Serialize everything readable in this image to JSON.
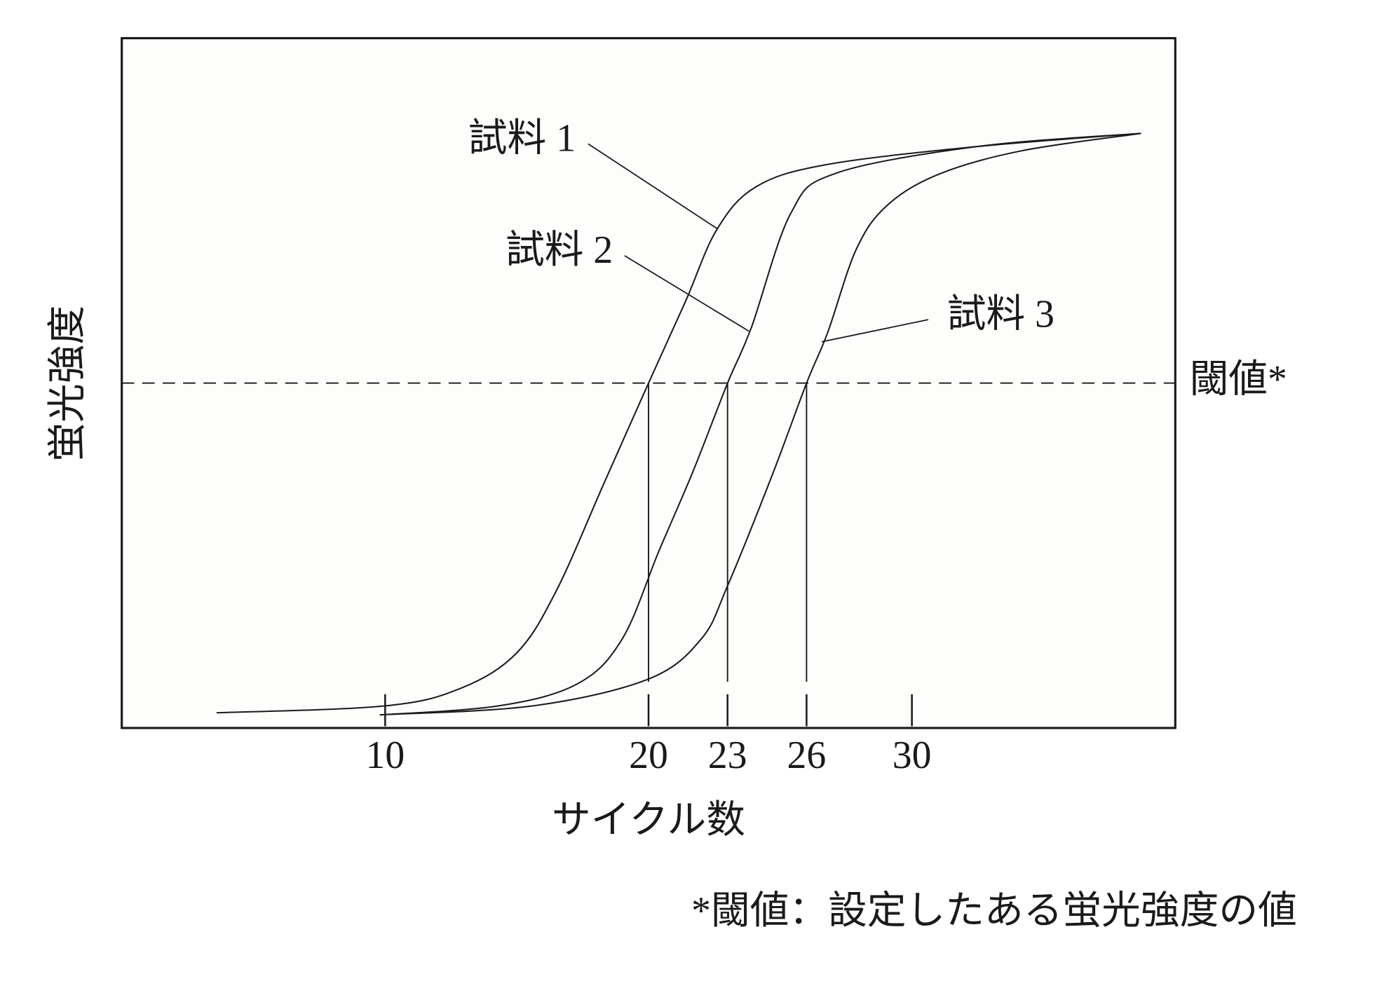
{
  "chart_data": {
    "type": "line",
    "x_label": "サイクル数",
    "y_label": "蛍光強度",
    "xlim": [
      0,
      40
    ],
    "ylim": [
      0,
      100
    ],
    "xticks": [
      10,
      20,
      23,
      26,
      30
    ],
    "threshold": 50,
    "threshold_label": "閾値*",
    "crossings": [
      20,
      23,
      26
    ],
    "footnote": "*閾値：設定したある蛍光強度の値",
    "series": [
      {
        "name": "試料 1",
        "color": "#1a1a1a",
        "x": [
          3.6,
          10.0,
          12.9,
          15.0,
          16.5,
          18.3,
          20.0,
          21.4,
          22.6,
          24.1,
          26.8,
          32.5,
          38.7
        ],
        "values": [
          2.2,
          3.2,
          5.8,
          10.9,
          19.9,
          35.4,
          50,
          61.8,
          72.3,
          78.5,
          81.7,
          84.3,
          86.2
        ]
      },
      {
        "name": "試料 2",
        "color": "#1a1a1a",
        "x": [
          9.8,
          14.3,
          17.3,
          19.0,
          20.4,
          21.7,
          23.0,
          23.9,
          25.4,
          27.1,
          32.5,
          38.7
        ],
        "values": [
          1.9,
          3.2,
          6.4,
          12.9,
          25.7,
          37.3,
          50,
          58,
          74.6,
          80.4,
          84.3,
          86.2
        ]
      },
      {
        "name": "試料 3",
        "color": "#1a1a1a",
        "x": [
          9.8,
          15.6,
          20.0,
          22.0,
          23.0,
          24.7,
          26.0,
          26.8,
          27.9,
          29.1,
          31.1,
          34.2,
          38.7
        ],
        "values": [
          1.9,
          3.2,
          7.1,
          12.9,
          20.6,
          36.7,
          50,
          57.3,
          69.5,
          75.9,
          80.4,
          83.7,
          86.2
        ]
      }
    ]
  }
}
